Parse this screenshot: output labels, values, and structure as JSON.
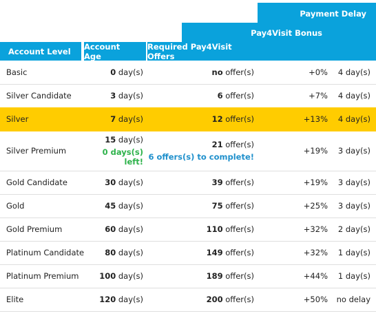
{
  "headers": {
    "payment_delay": "Payment Delay",
    "bonus": "Pay4Visit Bonus",
    "account_level": "Account Level",
    "account_age": "Account Age",
    "required_offers": "Required Pay4Visit Offers"
  },
  "highlight_color": "#ffcc00",
  "header_color": "#0aa2dc",
  "rows": [
    {
      "level": "Basic",
      "age_num": "0",
      "age_unit": " day(s)",
      "offers_num": "no",
      "offers_unit": " offer(s)",
      "bonus": "+0%",
      "delay": "4 day(s)",
      "highlighted": false
    },
    {
      "level": "Silver Candidate",
      "age_num": "3",
      "age_unit": " day(s)",
      "offers_num": "6",
      "offers_unit": " offer(s)",
      "bonus": "+7%",
      "delay": "4 day(s)",
      "highlighted": false
    },
    {
      "level": "Silver",
      "age_num": "7",
      "age_unit": " day(s)",
      "offers_num": "12",
      "offers_unit": " offer(s)",
      "bonus": "+13%",
      "delay": "4 day(s)",
      "highlighted": true
    },
    {
      "level": "Silver Premium",
      "age_num": "15",
      "age_unit": " day(s)",
      "age_note": "0 days(s) left!",
      "offers_num": "21",
      "offers_unit": " offer(s)",
      "offers_note": "6 offers(s) to complete!",
      "bonus": "+19%",
      "delay": "3 day(s)",
      "highlighted": false
    },
    {
      "level": "Gold Candidate",
      "age_num": "30",
      "age_unit": " day(s)",
      "offers_num": "39",
      "offers_unit": " offer(s)",
      "bonus": "+19%",
      "delay": "3 day(s)",
      "highlighted": false
    },
    {
      "level": "Gold",
      "age_num": "45",
      "age_unit": " day(s)",
      "offers_num": "75",
      "offers_unit": " offer(s)",
      "bonus": "+25%",
      "delay": "3 day(s)",
      "highlighted": false
    },
    {
      "level": "Gold Premium",
      "age_num": "60",
      "age_unit": " day(s)",
      "offers_num": "110",
      "offers_unit": " offer(s)",
      "bonus": "+32%",
      "delay": "2 day(s)",
      "highlighted": false
    },
    {
      "level": "Platinum Candidate",
      "age_num": "80",
      "age_unit": " day(s)",
      "offers_num": "149",
      "offers_unit": " offer(s)",
      "bonus": "+32%",
      "delay": "1 day(s)",
      "highlighted": false
    },
    {
      "level": "Platinum Premium",
      "age_num": "100",
      "age_unit": " day(s)",
      "offers_num": "189",
      "offers_unit": " offer(s)",
      "bonus": "+44%",
      "delay": "1 day(s)",
      "highlighted": false
    },
    {
      "level": "Elite",
      "age_num": "120",
      "age_unit": " day(s)",
      "offers_num": "200",
      "offers_unit": " offer(s)",
      "bonus": "+50%",
      "delay": "no delay",
      "highlighted": false
    }
  ]
}
